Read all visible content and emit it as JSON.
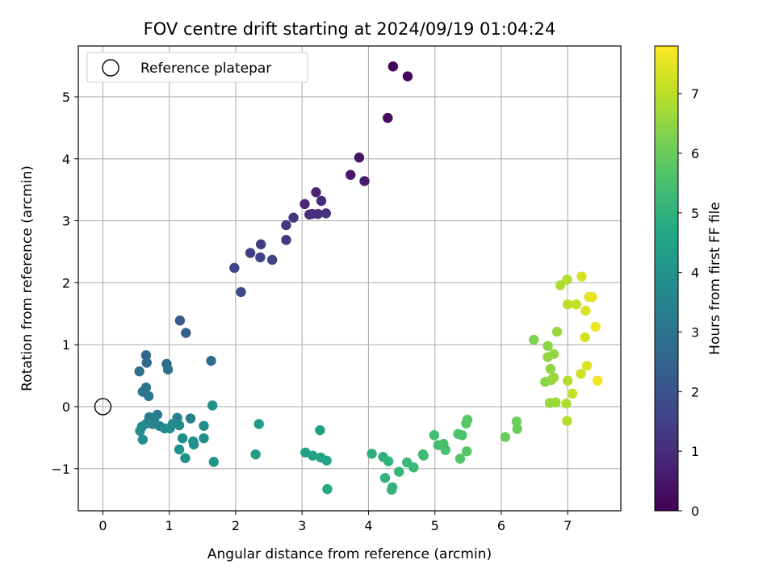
{
  "chart_data": {
    "type": "scatter",
    "title": "FOV centre drift starting at 2024/09/19 01:04:24",
    "xlabel": "Angular distance from reference (arcmin)",
    "ylabel": "Rotation from reference (arcmin)",
    "xlim": [
      -0.37,
      7.8
    ],
    "ylim": [
      -1.68,
      5.82
    ],
    "xticks": [
      0,
      1,
      2,
      3,
      4,
      5,
      6,
      7
    ],
    "yticks": [
      -1,
      0,
      1,
      2,
      3,
      4,
      5
    ],
    "ytick_labels": [
      "−1",
      "0",
      "1",
      "2",
      "3",
      "4",
      "5"
    ],
    "grid": true,
    "legend": {
      "position": "upper-left",
      "entries": [
        "Reference platepar"
      ]
    },
    "reference_point": {
      "x": 0,
      "y": 0,
      "label": "Reference platepar"
    },
    "colorbar": {
      "label": "Hours from first FF file",
      "range": [
        0,
        7.8
      ],
      "ticks": [
        0,
        1,
        2,
        3,
        4,
        5,
        6,
        7
      ],
      "colormap": "viridis"
    },
    "points": [
      {
        "x": 4.37,
        "y": 5.49,
        "t": 0.05
      },
      {
        "x": 4.59,
        "y": 5.33,
        "t": 0.12
      },
      {
        "x": 4.29,
        "y": 4.66,
        "t": 0.2
      },
      {
        "x": 3.86,
        "y": 4.02,
        "t": 0.45
      },
      {
        "x": 3.73,
        "y": 3.74,
        "t": 0.55
      },
      {
        "x": 3.94,
        "y": 3.64,
        "t": 0.62
      },
      {
        "x": 3.21,
        "y": 3.46,
        "t": 0.8
      },
      {
        "x": 3.04,
        "y": 3.27,
        "t": 0.9
      },
      {
        "x": 3.29,
        "y": 3.32,
        "t": 0.95
      },
      {
        "x": 3.11,
        "y": 3.1,
        "t": 1.0
      },
      {
        "x": 3.15,
        "y": 3.11,
        "t": 1.05
      },
      {
        "x": 3.24,
        "y": 3.11,
        "t": 1.1
      },
      {
        "x": 3.36,
        "y": 3.12,
        "t": 1.15
      },
      {
        "x": 2.87,
        "y": 3.05,
        "t": 1.2
      },
      {
        "x": 2.76,
        "y": 2.93,
        "t": 1.25
      },
      {
        "x": 2.76,
        "y": 2.69,
        "t": 1.3
      },
      {
        "x": 2.38,
        "y": 2.62,
        "t": 1.4
      },
      {
        "x": 2.22,
        "y": 2.48,
        "t": 1.45
      },
      {
        "x": 2.37,
        "y": 2.41,
        "t": 1.5
      },
      {
        "x": 2.55,
        "y": 2.37,
        "t": 1.55
      },
      {
        "x": 1.98,
        "y": 2.24,
        "t": 1.6
      },
      {
        "x": 2.08,
        "y": 1.85,
        "t": 1.7
      },
      {
        "x": 1.16,
        "y": 1.39,
        "t": 2.2
      },
      {
        "x": 1.25,
        "y": 1.19,
        "t": 2.3
      },
      {
        "x": 0.65,
        "y": 0.83,
        "t": 2.6
      },
      {
        "x": 0.66,
        "y": 0.71,
        "t": 2.65
      },
      {
        "x": 0.96,
        "y": 0.69,
        "t": 2.7
      },
      {
        "x": 1.63,
        "y": 0.74,
        "t": 2.75
      },
      {
        "x": 0.55,
        "y": 0.57,
        "t": 2.8
      },
      {
        "x": 0.98,
        "y": 0.6,
        "t": 2.85
      },
      {
        "x": 0.65,
        "y": 0.31,
        "t": 3.0
      },
      {
        "x": 0.6,
        "y": 0.24,
        "t": 3.05
      },
      {
        "x": 0.69,
        "y": 0.17,
        "t": 3.1
      },
      {
        "x": 0.82,
        "y": -0.13,
        "t": 3.2
      },
      {
        "x": 0.7,
        "y": -0.17,
        "t": 3.25
      },
      {
        "x": 0.77,
        "y": -0.2,
        "t": 3.3
      },
      {
        "x": 1.12,
        "y": -0.18,
        "t": 3.35
      },
      {
        "x": 1.32,
        "y": -0.19,
        "t": 3.4
      },
      {
        "x": 0.66,
        "y": -0.27,
        "t": 3.45
      },
      {
        "x": 0.75,
        "y": -0.28,
        "t": 3.5
      },
      {
        "x": 0.85,
        "y": -0.31,
        "t": 3.55
      },
      {
        "x": 1.05,
        "y": -0.28,
        "t": 3.6
      },
      {
        "x": 1.15,
        "y": -0.3,
        "t": 3.65
      },
      {
        "x": 0.59,
        "y": -0.32,
        "t": 3.65
      },
      {
        "x": 0.93,
        "y": -0.35,
        "t": 3.7
      },
      {
        "x": 1.01,
        "y": -0.35,
        "t": 3.7
      },
      {
        "x": 0.56,
        "y": -0.39,
        "t": 3.75
      },
      {
        "x": 1.52,
        "y": -0.31,
        "t": 3.75
      },
      {
        "x": 1.2,
        "y": -0.51,
        "t": 3.8
      },
      {
        "x": 1.52,
        "y": -0.51,
        "t": 3.8
      },
      {
        "x": 0.6,
        "y": -0.53,
        "t": 3.85
      },
      {
        "x": 1.36,
        "y": -0.56,
        "t": 3.85
      },
      {
        "x": 1.37,
        "y": -0.61,
        "t": 3.9
      },
      {
        "x": 1.15,
        "y": -0.69,
        "t": 3.9
      },
      {
        "x": 1.24,
        "y": -0.83,
        "t": 3.95
      },
      {
        "x": 1.65,
        "y": 0.02,
        "t": 3.95
      },
      {
        "x": 1.67,
        "y": -0.89,
        "t": 4.05
      },
      {
        "x": 2.35,
        "y": -0.28,
        "t": 4.2
      },
      {
        "x": 2.3,
        "y": -0.77,
        "t": 4.25
      },
      {
        "x": 3.27,
        "y": -0.38,
        "t": 4.4
      },
      {
        "x": 3.05,
        "y": -0.74,
        "t": 4.45
      },
      {
        "x": 3.16,
        "y": -0.79,
        "t": 4.5
      },
      {
        "x": 3.28,
        "y": -0.82,
        "t": 4.55
      },
      {
        "x": 3.37,
        "y": -0.87,
        "t": 4.6
      },
      {
        "x": 3.38,
        "y": -1.33,
        "t": 4.7
      },
      {
        "x": 4.05,
        "y": -0.76,
        "t": 4.95
      },
      {
        "x": 4.22,
        "y": -0.81,
        "t": 5.0
      },
      {
        "x": 4.3,
        "y": -0.88,
        "t": 5.05
      },
      {
        "x": 4.25,
        "y": -1.15,
        "t": 5.05
      },
      {
        "x": 4.36,
        "y": -1.3,
        "t": 5.1
      },
      {
        "x": 4.35,
        "y": -1.34,
        "t": 5.1
      },
      {
        "x": 4.46,
        "y": -1.05,
        "t": 5.15
      },
      {
        "x": 4.58,
        "y": -0.9,
        "t": 5.2
      },
      {
        "x": 4.68,
        "y": -0.98,
        "t": 5.25
      },
      {
        "x": 4.82,
        "y": -0.77,
        "t": 5.3
      },
      {
        "x": 4.83,
        "y": -0.79,
        "t": 5.3
      },
      {
        "x": 4.99,
        "y": -0.46,
        "t": 5.4
      },
      {
        "x": 5.05,
        "y": -0.62,
        "t": 5.45
      },
      {
        "x": 5.13,
        "y": -0.6,
        "t": 5.5
      },
      {
        "x": 5.16,
        "y": -0.7,
        "t": 5.5
      },
      {
        "x": 5.35,
        "y": -0.44,
        "t": 5.6
      },
      {
        "x": 5.41,
        "y": -0.46,
        "t": 5.6
      },
      {
        "x": 5.38,
        "y": -0.84,
        "t": 5.65
      },
      {
        "x": 5.48,
        "y": -0.72,
        "t": 5.7
      },
      {
        "x": 5.47,
        "y": -0.27,
        "t": 5.7
      },
      {
        "x": 5.49,
        "y": -0.21,
        "t": 5.75
      },
      {
        "x": 6.06,
        "y": -0.49,
        "t": 6.0
      },
      {
        "x": 6.23,
        "y": -0.24,
        "t": 6.05
      },
      {
        "x": 6.24,
        "y": -0.36,
        "t": 6.05
      },
      {
        "x": 6.49,
        "y": 1.08,
        "t": 6.3
      },
      {
        "x": 6.66,
        "y": 0.4,
        "t": 6.4
      },
      {
        "x": 6.7,
        "y": 0.98,
        "t": 6.45
      },
      {
        "x": 6.7,
        "y": 0.8,
        "t": 6.5
      },
      {
        "x": 6.74,
        "y": 0.61,
        "t": 6.5
      },
      {
        "x": 6.75,
        "y": 0.43,
        "t": 6.55
      },
      {
        "x": 6.79,
        "y": 0.85,
        "t": 6.55
      },
      {
        "x": 6.79,
        "y": 0.47,
        "t": 6.6
      },
      {
        "x": 6.84,
        "y": 1.21,
        "t": 6.6
      },
      {
        "x": 6.73,
        "y": 0.06,
        "t": 6.6
      },
      {
        "x": 6.82,
        "y": 0.07,
        "t": 6.65
      },
      {
        "x": 6.89,
        "y": 1.96,
        "t": 6.85
      },
      {
        "x": 6.98,
        "y": 0.05,
        "t": 6.85
      },
      {
        "x": 6.99,
        "y": 2.05,
        "t": 6.9
      },
      {
        "x": 7.0,
        "y": 0.42,
        "t": 6.9
      },
      {
        "x": 6.99,
        "y": -0.23,
        "t": 6.95
      },
      {
        "x": 7.0,
        "y": 1.65,
        "t": 7.0
      },
      {
        "x": 7.13,
        "y": 1.65,
        "t": 7.1
      },
      {
        "x": 7.07,
        "y": 0.21,
        "t": 7.1
      },
      {
        "x": 7.2,
        "y": 0.53,
        "t": 7.2
      },
      {
        "x": 7.21,
        "y": 2.1,
        "t": 7.3
      },
      {
        "x": 7.26,
        "y": 1.12,
        "t": 7.3
      },
      {
        "x": 7.27,
        "y": 1.55,
        "t": 7.4
      },
      {
        "x": 7.29,
        "y": 0.66,
        "t": 7.4
      },
      {
        "x": 7.32,
        "y": 1.77,
        "t": 7.5
      },
      {
        "x": 7.37,
        "y": 1.77,
        "t": 7.55
      },
      {
        "x": 7.42,
        "y": 1.29,
        "t": 7.6
      },
      {
        "x": 7.45,
        "y": 0.42,
        "t": 7.65
      }
    ]
  }
}
